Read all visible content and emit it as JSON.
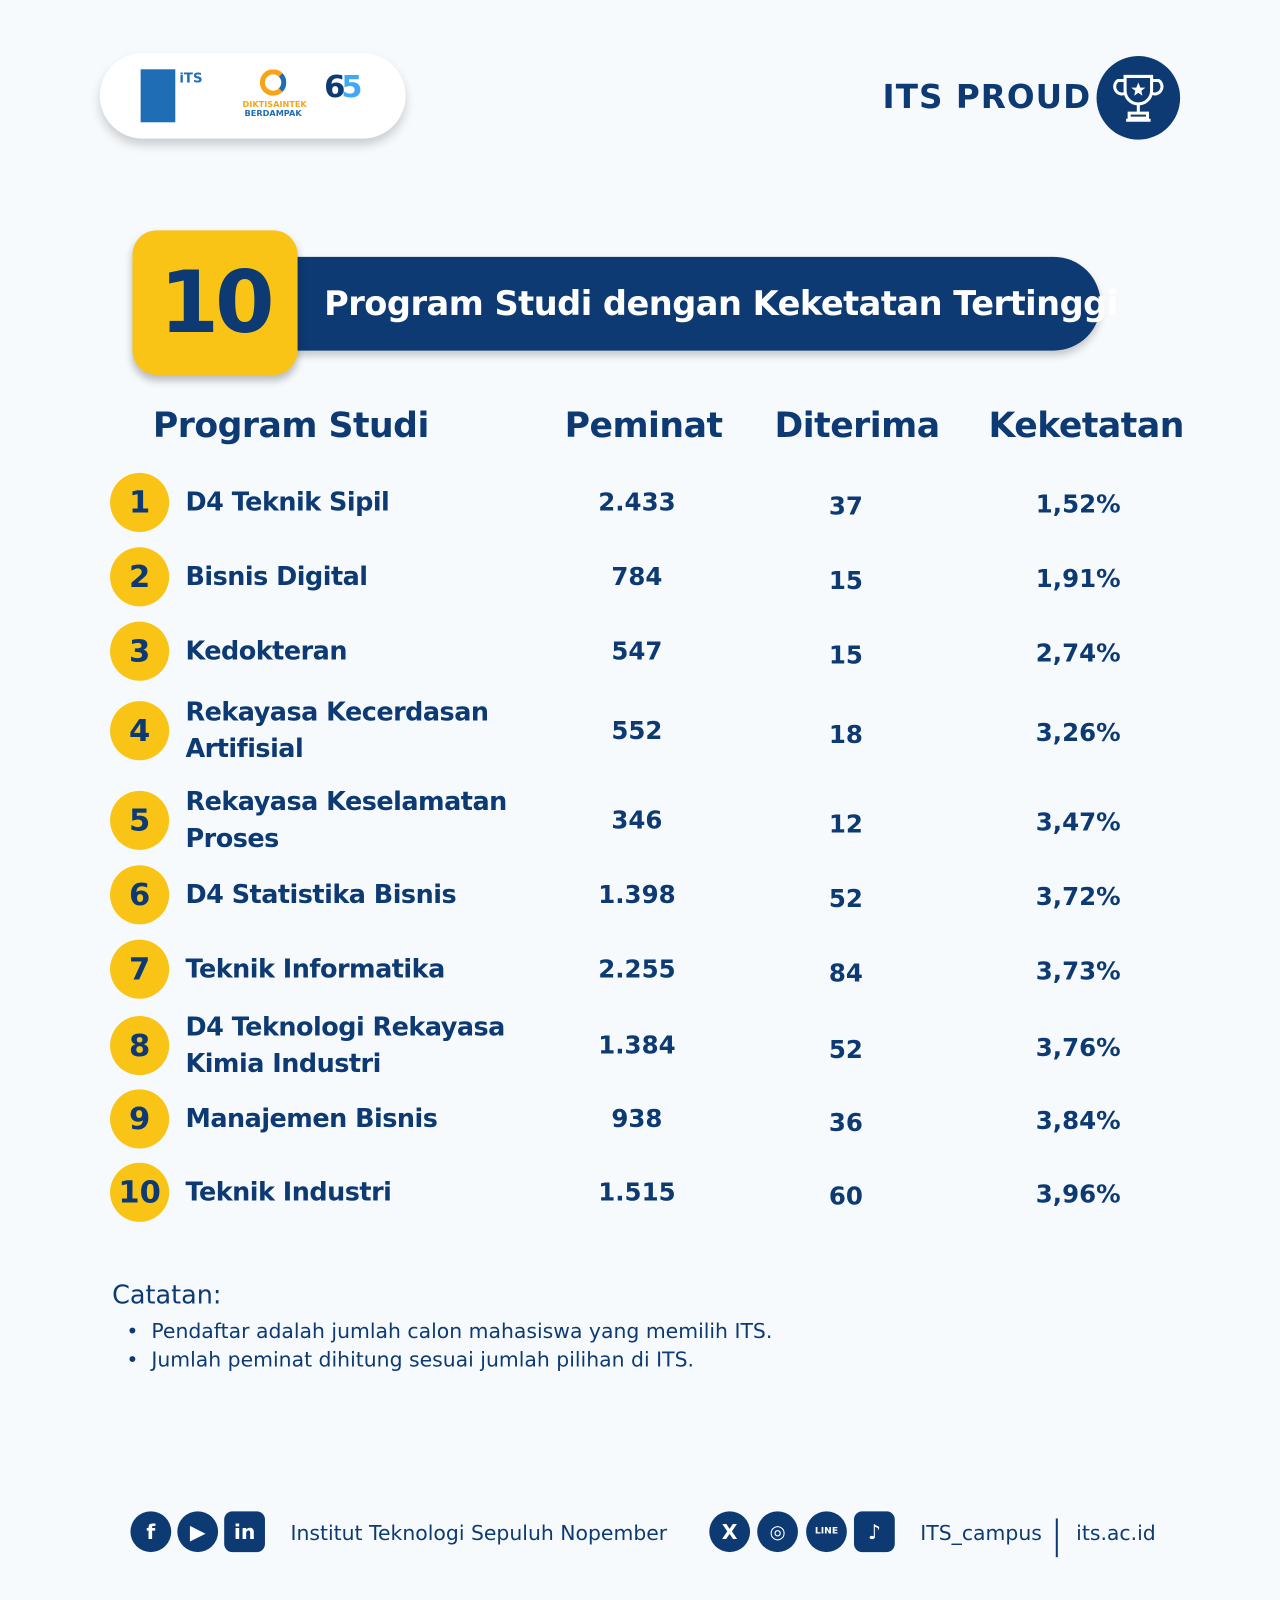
{
  "header": {
    "logos": [
      "ITS Institut Teknologi Sepuluh Nopember",
      "DIKTISAINTEK BERDAMPAK",
      "65 ITS"
    ],
    "brand": "ITS PROUD",
    "brand_icon": "trophy-icon"
  },
  "banner": {
    "number": "10",
    "title": "Program Studi dengan Keketatan Tertinggi"
  },
  "table": {
    "columns": [
      "Program Studi",
      "Peminat",
      "Diterima",
      "Keketatan"
    ],
    "rows": [
      {
        "rank": "1",
        "name": "D4 Teknik Sipil",
        "peminat": "2.433",
        "diterima": "37",
        "keketatan": "1,52%"
      },
      {
        "rank": "2",
        "name": "Bisnis Digital",
        "peminat": "784",
        "diterima": "15",
        "keketatan": "1,91%"
      },
      {
        "rank": "3",
        "name": "Kedokteran",
        "peminat": "547",
        "diterima": "15",
        "keketatan": "2,74%"
      },
      {
        "rank": "4",
        "name": "Rekayasa Kecerdasan Artifisial",
        "peminat": "552",
        "diterima": "18",
        "keketatan": "3,26%"
      },
      {
        "rank": "5",
        "name": "Rekayasa Keselamatan Proses",
        "peminat": "346",
        "diterima": "12",
        "keketatan": "3,47%"
      },
      {
        "rank": "6",
        "name": "D4 Statistika Bisnis",
        "peminat": "1.398",
        "diterima": "52",
        "keketatan": "3,72%"
      },
      {
        "rank": "7",
        "name": "Teknik Informatika",
        "peminat": "2.255",
        "diterima": "84",
        "keketatan": "3,73%"
      },
      {
        "rank": "8",
        "name": "D4 Teknologi Rekayasa Kimia Industri",
        "peminat": "1.384",
        "diterima": "52",
        "keketatan": "3,76%"
      },
      {
        "rank": "9",
        "name": "Manajemen Bisnis",
        "peminat": "938",
        "diterima": "36",
        "keketatan": "3,84%"
      },
      {
        "rank": "10",
        "name": "Teknik Industri",
        "peminat": "1.515",
        "diterima": "60",
        "keketatan": "3,96%"
      }
    ]
  },
  "notes": {
    "title": "Catatan:",
    "items": [
      "Pendaftar adalah jumlah calon mahasiswa yang memilih ITS.",
      "Jumlah peminat dihitung sesuai jumlah pilihan di ITS."
    ]
  },
  "footer": {
    "left_icons": [
      "facebook-icon",
      "youtube-icon",
      "linkedin-icon"
    ],
    "institution": "Institut Teknologi Sepuluh Nopember",
    "right_icons": [
      "x-icon",
      "instagram-icon",
      "line-icon",
      "tiktok-icon"
    ],
    "handle": "ITS_campus",
    "website": "its.ac.id"
  },
  "colors": {
    "navy": "#0d3a73",
    "yellow": "#f9c416",
    "background": "#f6fafc"
  }
}
